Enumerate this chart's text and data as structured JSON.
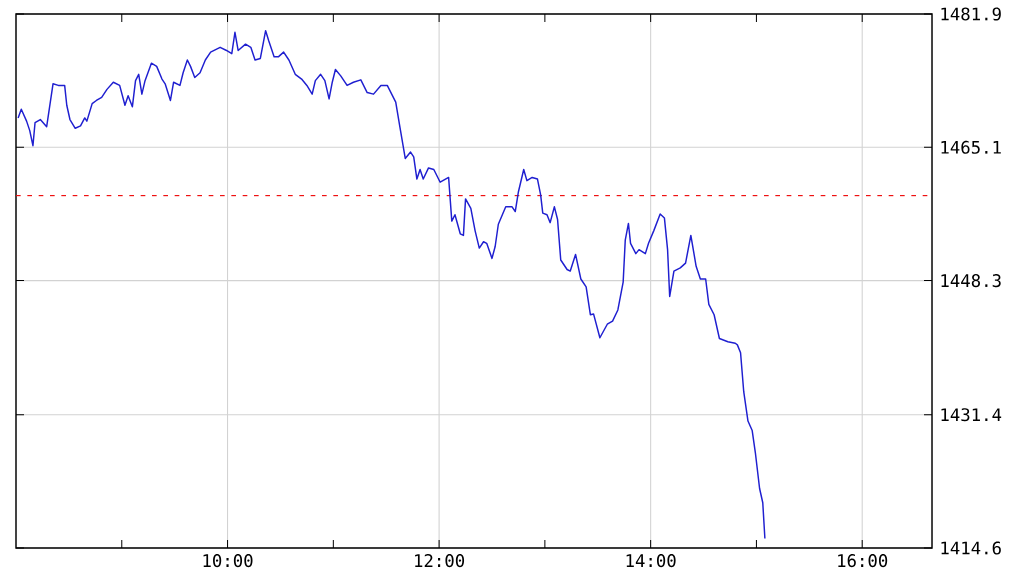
{
  "chart_data": {
    "type": "line",
    "x": [
      8.02,
      8.05,
      8.1,
      8.13,
      8.16,
      8.18,
      8.23,
      8.29,
      8.32,
      8.35,
      8.4,
      8.46,
      8.48,
      8.51,
      8.56,
      8.61,
      8.65,
      8.67,
      8.72,
      8.76,
      8.81,
      8.86,
      8.92,
      8.98,
      9.03,
      9.06,
      9.1,
      9.13,
      9.16,
      9.19,
      9.22,
      9.28,
      9.33,
      9.38,
      9.41,
      9.46,
      9.49,
      9.55,
      9.58,
      9.62,
      9.65,
      9.69,
      9.74,
      9.79,
      9.84,
      9.93,
      9.99,
      10.04,
      10.07,
      10.1,
      10.17,
      10.22,
      10.26,
      10.31,
      10.36,
      10.39,
      10.44,
      10.48,
      10.53,
      10.58,
      10.64,
      10.7,
      10.75,
      10.8,
      10.83,
      10.88,
      10.92,
      10.96,
      10.99,
      11.02,
      11.07,
      11.13,
      11.19,
      11.26,
      11.32,
      11.38,
      11.45,
      11.51,
      11.59,
      11.63,
      11.68,
      11.73,
      11.76,
      11.79,
      11.82,
      11.85,
      11.9,
      11.95,
      12.01,
      12.09,
      12.12,
      12.15,
      12.2,
      12.23,
      12.25,
      12.3,
      12.34,
      12.38,
      12.42,
      12.45,
      12.5,
      12.53,
      12.56,
      12.63,
      12.69,
      12.72,
      12.75,
      12.8,
      12.83,
      12.88,
      12.93,
      12.96,
      12.98,
      13.02,
      13.05,
      13.09,
      13.12,
      13.15,
      13.21,
      13.24,
      13.29,
      13.34,
      13.39,
      13.43,
      13.46,
      13.52,
      13.59,
      13.64,
      13.69,
      13.74,
      13.76,
      13.79,
      13.81,
      13.86,
      13.89,
      13.95,
      13.98,
      14.03,
      14.09,
      14.13,
      14.16,
      14.18,
      14.22,
      14.28,
      14.33,
      14.38,
      14.43,
      14.47,
      14.52,
      14.55,
      14.6,
      14.65,
      14.73,
      14.8,
      14.82,
      14.85,
      14.88,
      14.92,
      14.96,
      14.99,
      15.03,
      15.06,
      15.08
    ],
    "series": [
      {
        "color": "#1f1fd0",
        "values": [
          1468.8,
          1469.9,
          1468.4,
          1467.2,
          1465.3,
          1468.2,
          1468.6,
          1467.7,
          1470.4,
          1473.1,
          1472.9,
          1472.9,
          1470.4,
          1468.6,
          1467.5,
          1467.8,
          1468.8,
          1468.4,
          1470.6,
          1471.0,
          1471.4,
          1472.4,
          1473.3,
          1472.9,
          1470.4,
          1471.6,
          1470.2,
          1473.5,
          1474.3,
          1471.8,
          1473.5,
          1475.7,
          1475.3,
          1473.7,
          1473.1,
          1471.0,
          1473.3,
          1472.9,
          1474.5,
          1476.1,
          1475.3,
          1473.9,
          1474.5,
          1476.1,
          1477.1,
          1477.7,
          1477.3,
          1476.9,
          1479.6,
          1477.3,
          1478.1,
          1477.7,
          1476.1,
          1476.3,
          1479.8,
          1478.5,
          1476.5,
          1476.5,
          1477.1,
          1476.1,
          1474.3,
          1473.7,
          1472.9,
          1471.8,
          1473.5,
          1474.3,
          1473.5,
          1471.2,
          1473.3,
          1474.9,
          1474.1,
          1472.9,
          1473.3,
          1473.6,
          1472.0,
          1471.8,
          1472.9,
          1472.9,
          1470.8,
          1467.6,
          1463.7,
          1464.5,
          1463.9,
          1461.1,
          1462.3,
          1461.1,
          1462.5,
          1462.3,
          1460.7,
          1461.3,
          1455.8,
          1456.6,
          1454.2,
          1454.0,
          1458.6,
          1457.4,
          1454.6,
          1452.4,
          1453.2,
          1453.0,
          1451.1,
          1452.6,
          1455.4,
          1457.6,
          1457.6,
          1457.0,
          1459.5,
          1462.3,
          1460.9,
          1461.3,
          1461.1,
          1459.1,
          1456.8,
          1456.6,
          1455.6,
          1457.6,
          1456.0,
          1450.9,
          1449.7,
          1449.5,
          1451.6,
          1448.5,
          1447.5,
          1444.0,
          1444.1,
          1441.1,
          1442.8,
          1443.2,
          1444.6,
          1448.1,
          1453.4,
          1455.5,
          1453.0,
          1451.7,
          1452.2,
          1451.7,
          1453.0,
          1454.6,
          1456.7,
          1456.2,
          1452.2,
          1446.3,
          1449.5,
          1449.9,
          1450.5,
          1454.0,
          1450.1,
          1448.5,
          1448.5,
          1445.3,
          1444.0,
          1441.0,
          1440.6,
          1440.4,
          1440.2,
          1439.2,
          1434.3,
          1430.6,
          1429.4,
          1426.6,
          1422.1,
          1420.3,
          1415.8
        ]
      }
    ],
    "xlim": [
      8,
      16.66
    ],
    "ylim": [
      1414.6,
      1481.9
    ],
    "xticks": [
      {
        "value": 9,
        "label": null
      },
      {
        "value": 10,
        "label": "10:00"
      },
      {
        "value": 11,
        "label": null
      },
      {
        "value": 12,
        "label": "12:00"
      },
      {
        "value": 13,
        "label": null
      },
      {
        "value": 14,
        "label": "14:00"
      },
      {
        "value": 15,
        "label": null
      },
      {
        "value": 16,
        "label": "16:00"
      }
    ],
    "yticks": [
      1414.6,
      1431.4,
      1448.3,
      1465.1,
      1481.9
    ],
    "grid": true,
    "line_style": "solid",
    "ref_lines": [
      {
        "axis": "y",
        "value": 1459.0,
        "color": "#ee1111",
        "line_style": "dashed"
      }
    ]
  }
}
